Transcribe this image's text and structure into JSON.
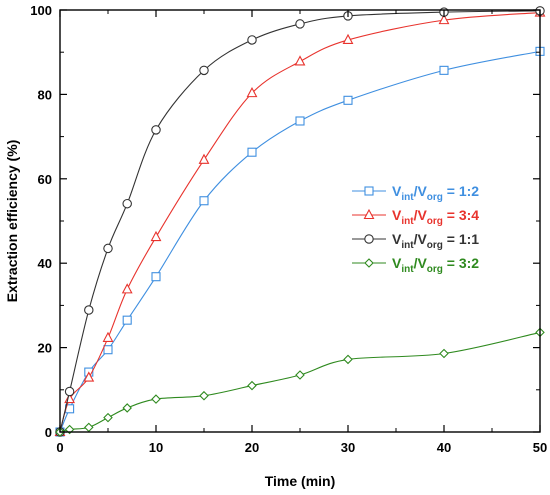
{
  "chart_data": {
    "type": "line",
    "title": "",
    "xlabel": "Time (min)",
    "ylabel": "Extraction efficiency (%)",
    "xlim": [
      0,
      50
    ],
    "ylim": [
      0,
      100
    ],
    "xticks": [
      0,
      10,
      20,
      30,
      40,
      50
    ],
    "yticks": [
      0,
      20,
      40,
      60,
      80,
      100
    ],
    "grid": false,
    "legend_position": "center-right",
    "series": [
      {
        "legend": {
          "v1": "V",
          "s1": "int",
          "slash": "/V",
          "s2": "org",
          "ratio": "= 1:2"
        },
        "color": "#3f8fe0",
        "marker": "square",
        "x": [
          0,
          1,
          3,
          5,
          7,
          10,
          15,
          20,
          25,
          30,
          40,
          50
        ],
        "y": [
          0,
          5.5,
          14.2,
          19.5,
          26.5,
          36.8,
          54.8,
          66.3,
          73.7,
          78.6,
          85.7,
          90.2
        ]
      },
      {
        "legend": {
          "v1": "V",
          "s1": "int",
          "slash": "/V",
          "s2": "org",
          "ratio": "= 3:4"
        },
        "color": "#e8332d",
        "marker": "triangle",
        "x": [
          0,
          1,
          3,
          5,
          7,
          10,
          15,
          20,
          25,
          30,
          40,
          50
        ],
        "y": [
          0,
          7.8,
          12.9,
          22.3,
          33.8,
          46.2,
          64.5,
          80.3,
          87.8,
          92.9,
          97.6,
          99.4
        ]
      },
      {
        "legend": {
          "v1": "V",
          "s1": "int",
          "slash": "/V",
          "s2": "org",
          "ratio": "= 1:1"
        },
        "color": "#333333",
        "marker": "circle",
        "x": [
          0,
          1,
          3,
          5,
          7,
          10,
          15,
          20,
          25,
          30,
          40,
          50
        ],
        "y": [
          0,
          9.6,
          28.9,
          43.5,
          54.1,
          71.6,
          85.7,
          92.9,
          96.7,
          98.6,
          99.5,
          99.8
        ]
      },
      {
        "legend": {
          "v1": "V",
          "s1": "int",
          "slash": "/V",
          "s2": "org",
          "ratio": "= 3:2"
        },
        "color": "#2f8a1f",
        "marker": "diamond",
        "x": [
          0,
          1,
          3,
          5,
          7,
          10,
          15,
          20,
          25,
          30,
          40,
          50
        ],
        "y": [
          0,
          0.6,
          1.1,
          3.4,
          5.7,
          7.8,
          8.6,
          11.0,
          13.5,
          17.2,
          18.6,
          23.6
        ]
      }
    ]
  }
}
